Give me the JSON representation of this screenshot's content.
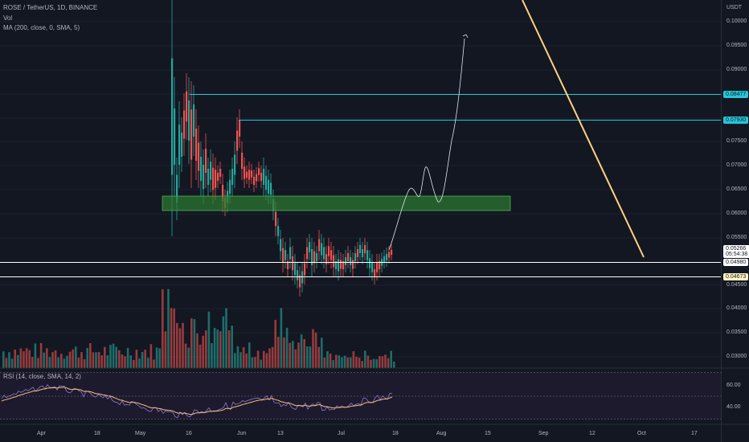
{
  "legend": {
    "symbol": "ROSE / TetherUS, 1D, BINANCE",
    "vol": "Vol",
    "ma": "MA (200, close, 0, SMA, 5)"
  },
  "rsi_legend": "RSI (14, close, SMA, 14, 2)",
  "currency": "USDT",
  "price_axis": [
    "0.10000",
    "0.09500",
    "0.09000",
    "0.07500",
    "0.07000",
    "0.06500",
    "0.06000",
    "0.05500",
    "0.04500",
    "0.04000",
    "0.03500",
    "0.03000"
  ],
  "rsi_axis": [
    "60.00",
    "40.00"
  ],
  "price_tags": {
    "cyan1": "0.08477",
    "cyan2": "0.07930",
    "current_price": "0.05266",
    "current_countdown": "05:54:38",
    "white": "0.04980",
    "yellow": "0.04673"
  },
  "x_axis": [
    "Apr",
    "18",
    "May",
    "16",
    "Jun",
    "13",
    "Jul",
    "18",
    "Aug",
    "15",
    "Sep",
    "12",
    "Oct",
    "17"
  ],
  "colors": {
    "background": "#131722",
    "up": "#26a69a",
    "down": "#ef5350",
    "cyan": "#26c6da",
    "yellow_line": "#ffd27f",
    "green_zone": "#2e7d32",
    "rsi": "#7e57c2",
    "rsi_ma": "#f0c27b"
  },
  "chart_data": {
    "type": "candlestick",
    "symbol": "ROSE / TetherUS",
    "timeframe": "1D",
    "exchange": "BINANCE",
    "price_range": [
      0.0427,
      0.1066
    ],
    "horizontal_levels": [
      0.08477,
      0.0793,
      0.0498,
      0.04673
    ],
    "zone": [
      0.0612,
      0.0633
    ],
    "projection_path": [
      0.05266,
      0.063,
      0.0655,
      0.063,
      0.07,
      0.062,
      0.084,
      0.0975
    ],
    "trend_line": {
      "from": 0.1066,
      "to": 0.0509
    },
    "rsi_axis_values": [
      60,
      40
    ]
  }
}
